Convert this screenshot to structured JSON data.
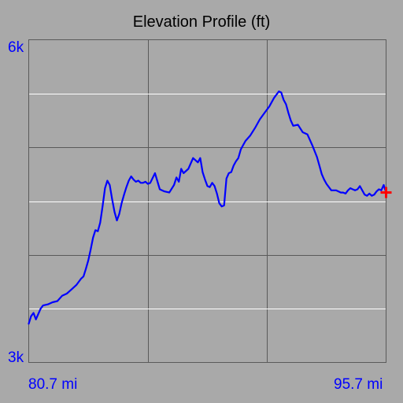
{
  "colors": {
    "background": "#a9a9a9",
    "title": "#000000",
    "tick_labels": "#0000ff",
    "grid_dark": "#5a5a5a",
    "grid_light": "#ffffff",
    "profile_line": "#0000ff",
    "current_marker": "#ff0000"
  },
  "icons": {
    "current_position": "red-plus-marker"
  },
  "chart_data": {
    "type": "line",
    "title": "Elevation Profile (ft)",
    "xlabel": "",
    "ylabel": "",
    "xlim": [
      80.7,
      95.7
    ],
    "ylim": [
      3000,
      6000
    ],
    "x_tick_labels": [
      "80.7 mi",
      "95.7 mi"
    ],
    "y_tick_labels": [
      "6k",
      "3k"
    ],
    "grid": true,
    "series": [
      {
        "x": [
          80.7,
          80.8,
          80.9,
          81.0,
          81.1,
          81.2,
          81.3,
          81.5,
          81.7,
          81.9,
          82.1,
          82.3,
          82.5,
          82.7,
          82.9,
          83.0,
          83.1,
          83.2,
          83.3,
          83.4,
          83.5,
          83.6,
          83.7,
          83.8,
          83.9,
          84.0,
          84.1,
          84.2,
          84.3,
          84.4,
          84.5,
          84.6,
          84.7,
          84.8,
          84.9,
          85.0,
          85.1,
          85.2,
          85.3,
          85.4,
          85.5,
          85.6,
          85.7,
          85.8,
          86.0,
          86.2,
          86.4,
          86.6,
          86.8,
          86.9,
          87.0,
          87.1,
          87.2,
          87.4,
          87.6,
          87.8,
          87.9,
          88.0,
          88.1,
          88.2,
          88.3,
          88.4,
          88.5,
          88.6,
          88.7,
          88.8,
          88.9,
          89.0,
          89.1,
          89.2,
          89.3,
          89.4,
          89.5,
          89.6,
          89.7,
          89.8,
          90.0,
          90.2,
          90.4,
          90.6,
          90.8,
          91.0,
          91.2,
          91.3,
          91.4,
          91.5,
          91.6,
          91.7,
          91.8,
          92.0,
          92.2,
          92.4,
          92.6,
          92.8,
          92.9,
          93.0,
          93.1,
          93.2,
          93.4,
          93.6,
          93.8,
          93.9,
          94.0,
          94.1,
          94.2,
          94.3,
          94.4,
          94.5,
          94.6,
          94.7,
          94.8,
          94.9,
          95.0,
          95.1,
          95.2,
          95.3,
          95.4,
          95.5,
          95.6,
          95.7
        ],
        "y": [
          3360,
          3430,
          3460,
          3400,
          3450,
          3500,
          3530,
          3540,
          3560,
          3570,
          3620,
          3640,
          3680,
          3720,
          3780,
          3800,
          3870,
          3950,
          4050,
          4160,
          4230,
          4220,
          4300,
          4450,
          4620,
          4690,
          4650,
          4520,
          4400,
          4320,
          4380,
          4480,
          4560,
          4630,
          4690,
          4730,
          4700,
          4680,
          4690,
          4670,
          4670,
          4680,
          4660,
          4670,
          4760,
          4610,
          4590,
          4580,
          4650,
          4720,
          4680,
          4800,
          4760,
          4800,
          4900,
          4860,
          4900,
          4770,
          4700,
          4640,
          4630,
          4670,
          4640,
          4570,
          4480,
          4450,
          4460,
          4710,
          4760,
          4770,
          4830,
          4870,
          4900,
          4980,
          5020,
          5060,
          5110,
          5180,
          5260,
          5320,
          5380,
          5460,
          5520,
          5510,
          5440,
          5400,
          5320,
          5250,
          5200,
          5210,
          5140,
          5120,
          5020,
          4910,
          4830,
          4750,
          4700,
          4660,
          4600,
          4600,
          4580,
          4580,
          4570,
          4600,
          4620,
          4610,
          4600,
          4610,
          4640,
          4600,
          4560,
          4550,
          4570,
          4550,
          4560,
          4590,
          4610,
          4600,
          4650,
          4580
        ]
      }
    ],
    "annotations": [
      {
        "type": "current-position",
        "x": 95.7,
        "y": 4580
      }
    ]
  }
}
